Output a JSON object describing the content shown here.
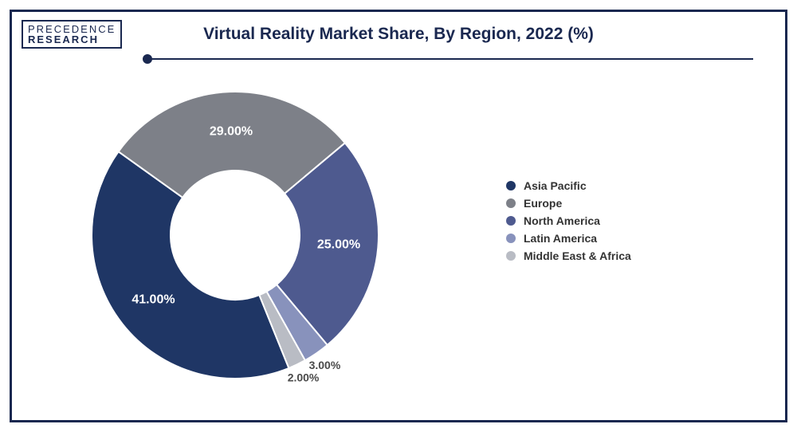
{
  "logo": {
    "line1": "PRECEDENCE",
    "line2": "RESEARCH"
  },
  "title": "Virtual Reality Market Share, By Region, 2022 (%)",
  "chart": {
    "type": "donut",
    "background_color": "#ffffff",
    "border_color": "#1a2850",
    "inner_radius_ratio": 0.45,
    "outer_radius": 180,
    "start_angle_deg": 90,
    "slices": [
      {
        "label": "Asia Pacific",
        "value": 41.0,
        "color": "#1f3665",
        "text": "41.00%",
        "label_color": "#ffffff"
      },
      {
        "label": "Europe",
        "value": 29.0,
        "color": "#7d8088",
        "text": "29.00%",
        "label_color": "#ffffff"
      },
      {
        "label": "North America",
        "value": 25.0,
        "color": "#4e5a8f",
        "text": "25.00%",
        "label_color": "#ffffff"
      },
      {
        "label": "Latin America",
        "value": 3.0,
        "color": "#8892bc",
        "text": "3.00%",
        "label_color": "#4a4a4a"
      },
      {
        "label": "Middle East & Africa",
        "value": 2.0,
        "color": "#b9bcc4",
        "text": "2.00%",
        "label_color": "#4a4a4a"
      }
    ]
  },
  "legend_title_fontsize": 14
}
